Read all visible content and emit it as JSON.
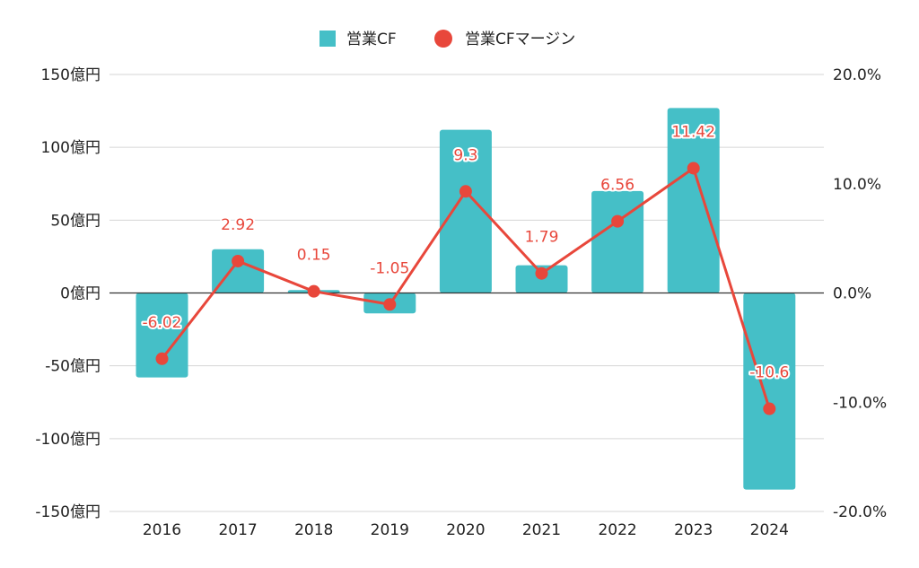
{
  "chart_data": {
    "type": "bar",
    "categories": [
      "2016",
      "2017",
      "2018",
      "2019",
      "2020",
      "2021",
      "2022",
      "2023",
      "2024"
    ],
    "series": [
      {
        "name": "営業CF",
        "type": "bar",
        "axis": "left",
        "color": "#45bfc7",
        "values": [
          -58,
          30,
          2,
          -14,
          112,
          19,
          70,
          127,
          -135
        ]
      },
      {
        "name": "営業CFマージン",
        "type": "line",
        "axis": "right",
        "color": "#e8473b",
        "values": [
          -6.02,
          2.92,
          0.15,
          -1.05,
          9.3,
          1.79,
          6.56,
          11.42,
          -10.6
        ],
        "labels": [
          "-6.02",
          "2.92",
          "0.15",
          "-1.05",
          "9.3",
          "1.79",
          "6.56",
          "11.42",
          "-10.6"
        ]
      }
    ],
    "y_left": {
      "ylim": [
        -150,
        150
      ],
      "ticks": [
        150,
        100,
        50,
        0,
        -50,
        -100,
        -150
      ],
      "tick_labels": [
        "150億円",
        "100億円",
        "50億円",
        "0億円",
        "-50億円",
        "-100億円",
        "-150億円"
      ]
    },
    "y_right": {
      "ylim": [
        -20,
        20
      ],
      "ticks": [
        20,
        10,
        0,
        -10,
        -20
      ],
      "tick_labels": [
        "20.0%",
        "10.0%",
        "0.0%",
        "-10.0%",
        "-20.0%"
      ]
    },
    "grid": true,
    "legend_position": "top-center"
  }
}
